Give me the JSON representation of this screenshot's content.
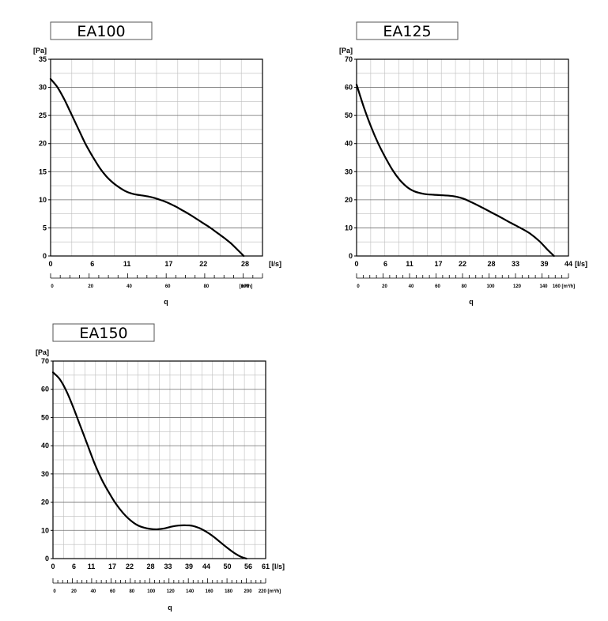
{
  "chart_data": [
    {
      "type": "line",
      "title": "EA100",
      "ylabel": "[Pa]",
      "xlabel": "[l/s]",
      "x2label": "[m³/h]",
      "qlabel": "q",
      "xlim": [
        0,
        30.5
      ],
      "ylim": [
        0,
        35
      ],
      "y_ticks": [
        0,
        5,
        10,
        15,
        20,
        25,
        30,
        35
      ],
      "x_ticks": [
        0,
        6,
        11,
        17,
        22,
        28
      ],
      "x_tick_labels": [
        "0",
        "6",
        "11",
        "17",
        "22",
        "28"
      ],
      "x2_ticks": [
        0,
        20,
        40,
        60,
        80,
        100
      ],
      "x2_tick_labels": [
        "0",
        "20",
        "40",
        "60",
        "80",
        "100"
      ],
      "x2_max": 110,
      "series": [
        {
          "x": [
            0,
            1,
            2,
            3,
            4,
            5,
            6,
            7,
            8,
            9,
            10,
            11,
            12,
            13,
            14,
            15,
            16,
            17,
            18,
            19,
            20,
            21,
            22,
            23,
            24,
            25,
            26,
            27,
            27.8
          ],
          "y": [
            31.5,
            30,
            27.8,
            25.2,
            22.6,
            20,
            17.8,
            15.8,
            14.2,
            13,
            12.1,
            11.4,
            11,
            10.8,
            10.6,
            10.3,
            9.9,
            9.4,
            8.8,
            8.1,
            7.4,
            6.6,
            5.8,
            5,
            4.1,
            3.2,
            2.2,
            1,
            0
          ]
        }
      ]
    },
    {
      "type": "line",
      "title": "EA125",
      "ylabel": "[Pa]",
      "xlabel": "[l/s]",
      "x2label": "160 [m³/h]",
      "qlabel": "q",
      "xlim": [
        0,
        44
      ],
      "ylim": [
        0,
        70
      ],
      "y_ticks": [
        0,
        10,
        20,
        30,
        40,
        50,
        60,
        70
      ],
      "x_ticks": [
        0,
        6,
        11,
        17,
        22,
        28,
        33,
        39,
        44
      ],
      "x_tick_labels": [
        "0",
        "6",
        "11",
        "17",
        "22",
        "28",
        "33",
        "39",
        "44"
      ],
      "x2_ticks": [
        0,
        20,
        40,
        60,
        80,
        100,
        120,
        140
      ],
      "x2_tick_labels": [
        "0",
        "20",
        "40",
        "60",
        "80",
        "100",
        "120",
        "140"
      ],
      "x2_max": 160,
      "series": [
        {
          "x": [
            0,
            1.5,
            3,
            4.5,
            6,
            7.5,
            9,
            10.5,
            12,
            14,
            16,
            18,
            20,
            22,
            24,
            26,
            28,
            30,
            32,
            34,
            36,
            38,
            39.5,
            41
          ],
          "y": [
            61,
            53,
            46,
            40,
            35,
            30.5,
            27,
            24.5,
            23,
            22.1,
            21.8,
            21.6,
            21.3,
            20.5,
            19,
            17.3,
            15.5,
            13.7,
            11.8,
            10,
            8,
            5.2,
            2.5,
            0
          ]
        }
      ]
    },
    {
      "type": "line",
      "title": "EA150",
      "ylabel": "[Pa]",
      "xlabel": "[l/s]",
      "x2label": "220 [m³/h]",
      "qlabel": "q",
      "xlim": [
        0,
        61
      ],
      "ylim": [
        0,
        70
      ],
      "y_ticks": [
        0,
        10,
        20,
        30,
        40,
        50,
        60,
        70
      ],
      "x_ticks": [
        0,
        6,
        11,
        17,
        22,
        28,
        33,
        39,
        44,
        50,
        56,
        61
      ],
      "x_tick_labels": [
        "0",
        "6",
        "11",
        "17",
        "22",
        "28",
        "33",
        "39",
        "44",
        "50",
        "56",
        "61"
      ],
      "x2_ticks": [
        0,
        20,
        40,
        60,
        80,
        100,
        120,
        140,
        160,
        180,
        200
      ],
      "x2_tick_labels": [
        "0",
        "20",
        "40",
        "60",
        "80",
        "100",
        "120",
        "140",
        "160",
        "180",
        "200"
      ],
      "x2_max": 220,
      "series": [
        {
          "x": [
            0,
            2,
            4,
            6,
            8,
            10,
            12,
            14,
            16,
            18,
            20,
            22,
            24,
            26,
            28,
            30,
            32,
            34,
            36,
            38,
            40,
            42,
            44,
            46,
            48,
            50,
            52,
            54,
            55.5
          ],
          "y": [
            66,
            63.5,
            59,
            53,
            46.5,
            40,
            33.5,
            28,
            23.5,
            19.5,
            16.3,
            13.8,
            12,
            11,
            10.5,
            10.4,
            10.7,
            11.3,
            11.7,
            11.8,
            11.6,
            10.8,
            9.5,
            7.8,
            5.8,
            3.8,
            2,
            0.6,
            0
          ]
        }
      ]
    }
  ]
}
